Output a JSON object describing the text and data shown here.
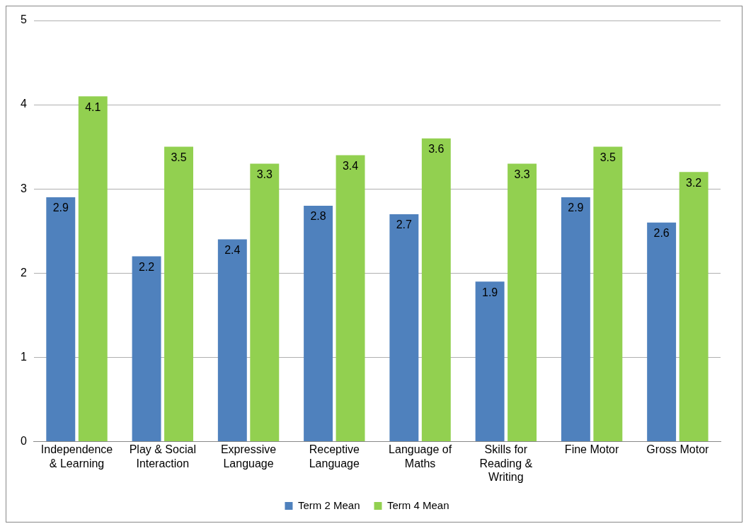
{
  "chart_data": {
    "type": "bar",
    "categories": [
      "Independence & Learning",
      "Play & Social Interaction",
      "Expressive Language",
      "Receptive Language",
      "Language of Maths",
      "Skills for Reading & Writing",
      "Fine Motor",
      "Gross Motor"
    ],
    "series": [
      {
        "name": "Term 2 Mean",
        "color": "#4f81bd",
        "values": [
          2.9,
          2.2,
          2.4,
          2.8,
          2.7,
          1.9,
          2.9,
          2.6
        ]
      },
      {
        "name": "Term 4 Mean",
        "color": "#92d050",
        "values": [
          4.1,
          3.5,
          3.3,
          3.4,
          3.6,
          3.3,
          3.5,
          3.2
        ]
      }
    ],
    "ylim": [
      0,
      5
    ],
    "yticks": [
      0,
      1,
      2,
      3,
      4,
      5
    ],
    "grid": "y",
    "legend": "bottom",
    "data_labels": true
  }
}
